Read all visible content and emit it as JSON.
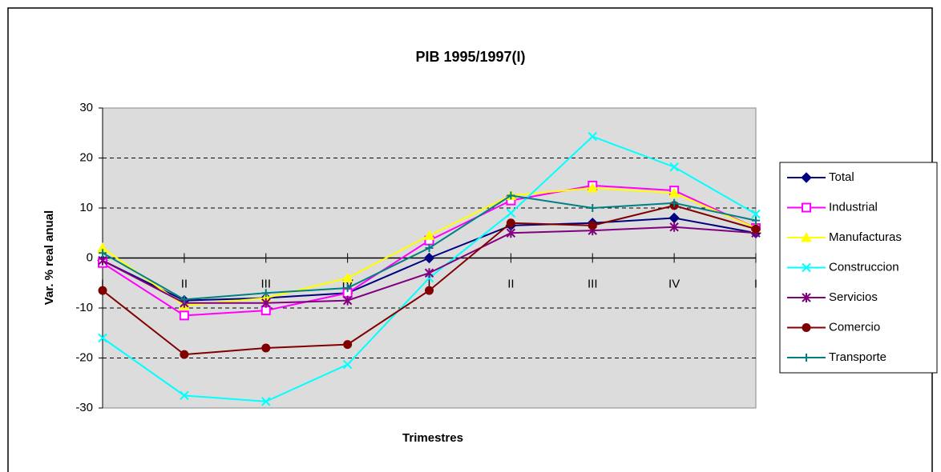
{
  "chart_data": {
    "type": "line",
    "title": "PIB 1995/1997(I)",
    "x_label": "Trimestres",
    "y_label": "Var. % real anual",
    "categories": [
      "I",
      "II",
      "III",
      "IV",
      "I",
      "II",
      "III",
      "IV",
      "I"
    ],
    "ylim": [
      -30,
      30
    ],
    "yticks": [
      -30,
      -20,
      -10,
      0,
      10,
      20,
      30
    ],
    "grid": true,
    "legend": "right",
    "series": [
      {
        "name": "Total",
        "color": "#000080",
        "marker": "diamond",
        "values": [
          -0.5,
          -8.5,
          -8,
          -7,
          0,
          6.5,
          7,
          8,
          5
        ]
      },
      {
        "name": "Industrial",
        "color": "#ff00ff",
        "marker": "square",
        "values": [
          -1,
          -11.5,
          -10.5,
          -7,
          3.5,
          11.5,
          14.5,
          13.5,
          6
        ]
      },
      {
        "name": "Manufacturas",
        "color": "#ffff00",
        "marker": "triangle",
        "values": [
          2,
          -9.5,
          -8,
          -4,
          4.5,
          12.5,
          14,
          13,
          6
        ]
      },
      {
        "name": "Construccion",
        "color": "#00ffff",
        "marker": "x",
        "values": [
          -16,
          -27.5,
          -28.7,
          -21.3,
          -4,
          9,
          24.3,
          18.2,
          8.8
        ]
      },
      {
        "name": "Servicios",
        "color": "#800080",
        "marker": "star",
        "values": [
          -0.5,
          -9,
          -9,
          -8.5,
          -3,
          5,
          5.5,
          6.2,
          5
        ]
      },
      {
        "name": "Comercio",
        "color": "#800000",
        "marker": "circle",
        "values": [
          -6.5,
          -19.3,
          -18,
          -17.3,
          -6.5,
          7,
          6.5,
          10.5,
          5.8
        ]
      },
      {
        "name": "Transporte",
        "color": "#008080",
        "marker": "plus",
        "values": [
          1,
          -8.3,
          -7,
          -6,
          2,
          12.5,
          10,
          11,
          7.5
        ]
      }
    ]
  }
}
